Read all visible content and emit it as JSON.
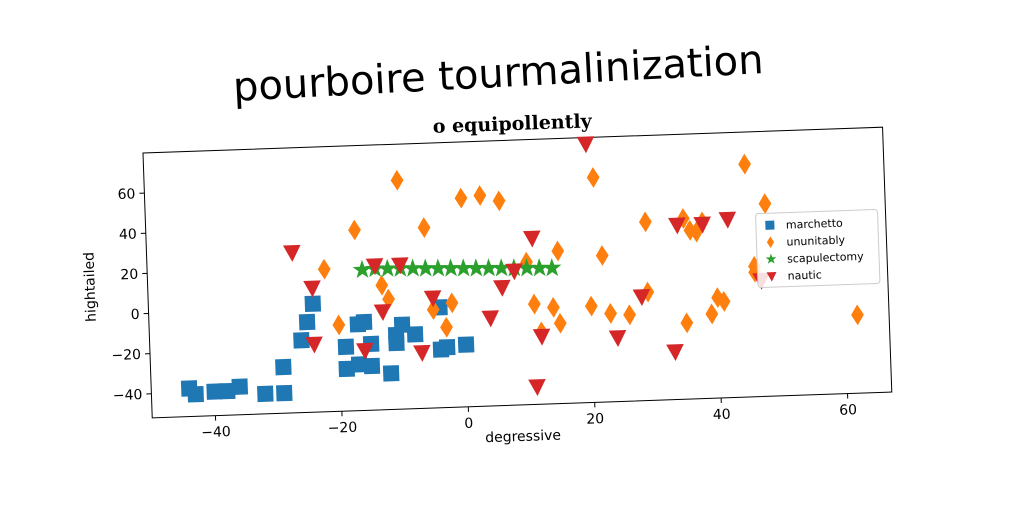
{
  "title": "pourboire tourmalinization",
  "chart_data": {
    "type": "scatter",
    "title": "o equipollently",
    "xlabel": "degressive",
    "ylabel": "hightailed",
    "xlim": [
      -50,
      67
    ],
    "ylim": [
      -52,
      80
    ],
    "xticks": [
      -40,
      -20,
      0,
      20,
      40,
      60
    ],
    "yticks": [
      -40,
      -20,
      0,
      20,
      40,
      60
    ],
    "grid": false,
    "legend_position": "right",
    "series": [
      {
        "name": "marchetto",
        "marker": "square",
        "color": "#1f77b4",
        "points": [
          [
            -44,
            -38
          ],
          [
            -43,
            -41
          ],
          [
            -40,
            -40
          ],
          [
            -38,
            -40
          ],
          [
            -36,
            -38
          ],
          [
            -32,
            -42
          ],
          [
            -29,
            -42
          ],
          [
            -29,
            -29
          ],
          [
            -26,
            -16
          ],
          [
            -25,
            -7
          ],
          [
            -24,
            2
          ],
          [
            -19,
            -20
          ],
          [
            -19,
            -31
          ],
          [
            -17,
            -29
          ],
          [
            -17,
            -9
          ],
          [
            -16,
            -8
          ],
          [
            -15,
            -19
          ],
          [
            -15,
            -30
          ],
          [
            -12,
            -34
          ],
          [
            -11,
            -15
          ],
          [
            -11,
            -19
          ],
          [
            -10,
            -10
          ],
          [
            -8,
            -15
          ],
          [
            -4,
            -23
          ],
          [
            -3,
            -22
          ],
          [
            0,
            -21
          ],
          [
            -4,
            -2
          ]
        ]
      },
      {
        "name": "ununitably",
        "marker": "diamond",
        "color": "#ff7f0e",
        "points": [
          [
            -22,
            19
          ],
          [
            -20,
            -9
          ],
          [
            -17,
            38
          ],
          [
            -13,
            10
          ],
          [
            -12,
            3
          ],
          [
            -10,
            62
          ],
          [
            -6,
            38
          ],
          [
            -5,
            -3
          ],
          [
            -3,
            -12
          ],
          [
            -2,
            0
          ],
          [
            0,
            52
          ],
          [
            3,
            53
          ],
          [
            6,
            50
          ],
          [
            10,
            19
          ],
          [
            11,
            -2
          ],
          [
            12,
            -16
          ],
          [
            14,
            -4
          ],
          [
            15,
            24
          ],
          [
            15,
            -12
          ],
          [
            20,
            -4
          ],
          [
            21,
            60
          ],
          [
            22,
            21
          ],
          [
            23,
            -8
          ],
          [
            26,
            -9
          ],
          [
            29,
            2
          ],
          [
            29,
            37
          ],
          [
            35,
            -14
          ],
          [
            35,
            38
          ],
          [
            36,
            32
          ],
          [
            37,
            31
          ],
          [
            38,
            36
          ],
          [
            39,
            -10
          ],
          [
            40,
            -2
          ],
          [
            41,
            -4
          ],
          [
            45,
            64
          ],
          [
            46,
            10
          ],
          [
            46,
            13
          ],
          [
            48,
            44
          ],
          [
            62,
            -13
          ]
        ]
      },
      {
        "name": "scapulectomy",
        "marker": "star",
        "color": "#2ca02c",
        "points": [
          [
            -16,
            18
          ],
          [
            -14,
            18.3
          ],
          [
            -12,
            18.1
          ],
          [
            -10,
            18
          ],
          [
            -8,
            17.8
          ],
          [
            -6,
            17.6
          ],
          [
            -4,
            17.4
          ],
          [
            -2,
            17.2
          ],
          [
            0,
            17
          ],
          [
            2,
            16.8
          ],
          [
            4,
            16.6
          ],
          [
            6,
            16.4
          ],
          [
            8,
            16.2
          ],
          [
            10,
            16
          ],
          [
            12,
            15.8
          ],
          [
            14,
            15.6
          ]
        ]
      },
      {
        "name": "nautic",
        "marker": "triangle-down",
        "color": "#d62728",
        "points": [
          [
            -27,
            28
          ],
          [
            -24,
            10
          ],
          [
            -24,
            -18
          ],
          [
            -16,
            -22
          ],
          [
            -14,
            20
          ],
          [
            -13,
            -3
          ],
          [
            -10,
            20
          ],
          [
            -7,
            -24
          ],
          [
            -5,
            3
          ],
          [
            4,
            -8
          ],
          [
            6,
            7
          ],
          [
            8,
            15
          ],
          [
            11,
            31
          ],
          [
            11,
            -43
          ],
          [
            12,
            -18
          ],
          [
            20,
            77
          ],
          [
            24,
            -20
          ],
          [
            28,
            0
          ],
          [
            33,
            -28
          ],
          [
            34,
            35
          ],
          [
            38,
            35
          ],
          [
            42,
            37
          ],
          [
            47,
            6
          ]
        ]
      }
    ]
  }
}
